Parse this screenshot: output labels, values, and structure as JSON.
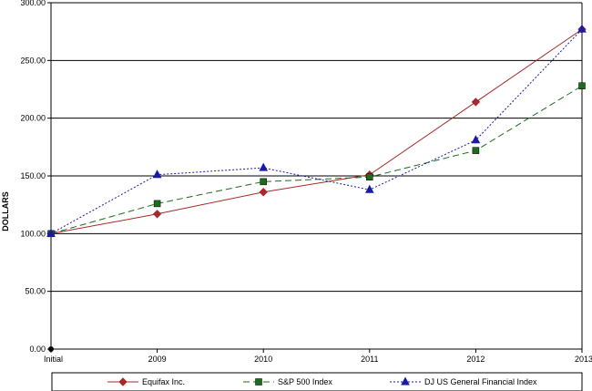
{
  "chart_data": {
    "type": "line",
    "title": "",
    "xlabel": "",
    "ylabel": "DOLLARS",
    "categories": [
      "Initial",
      "2009",
      "2010",
      "2011",
      "2012",
      "2013"
    ],
    "ylim": [
      0,
      300
    ],
    "yticks": [
      "0.00",
      "50.00",
      "100.00",
      "150.00",
      "200.00",
      "250.00",
      "300.00"
    ],
    "grid": true,
    "legend_position": "bottom",
    "series": [
      {
        "name": "Equifax Inc.",
        "color": "#a52a2a",
        "marker": "diamond",
        "dash": "solid",
        "values": [
          100,
          117,
          136,
          151,
          214,
          277
        ]
      },
      {
        "name": "S&P 500 Index",
        "color": "#1e6b1e",
        "marker": "square",
        "dash": "dashed",
        "values": [
          100,
          126,
          145,
          149,
          172,
          228
        ]
      },
      {
        "name": "DJ US General Financial Index",
        "color": "#1a1aa8",
        "marker": "triangle",
        "dash": "dotted",
        "values": [
          100,
          151,
          157,
          138,
          181,
          277
        ]
      }
    ]
  }
}
